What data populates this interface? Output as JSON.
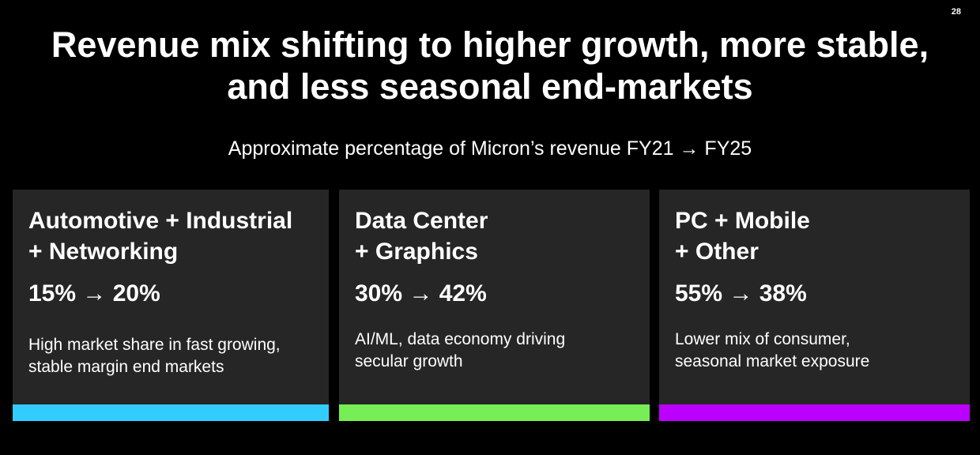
{
  "page_number": "28",
  "title": {
    "line1": "Revenue mix shifting to higher growth, more stable,",
    "line2": "and less seasonal end-markets"
  },
  "subtitle": "Approximate percentage of Micron’s revenue FY21 → FY25",
  "segments": [
    {
      "heading_line1": "Automotive + Industrial",
      "heading_line2": "+ Networking",
      "shift": "15% → 20%",
      "desc_line1": "High market share in fast growing,",
      "desc_line2": "stable margin end markets",
      "color": "#33ccff"
    },
    {
      "heading_line1": "Data Center",
      "heading_line2": "+ Graphics",
      "shift": "30% → 42%",
      "desc_line1": "AI/ML, data economy driving",
      "desc_line2": "secular growth",
      "color": "#77ee55"
    },
    {
      "heading_line1": "PC + Mobile",
      "heading_line2": "+ Other",
      "shift": "55% → 38%",
      "desc_line1": "Lower mix of consumer,",
      "desc_line2": "seasonal market exposure",
      "color": "#bb00ff"
    }
  ]
}
